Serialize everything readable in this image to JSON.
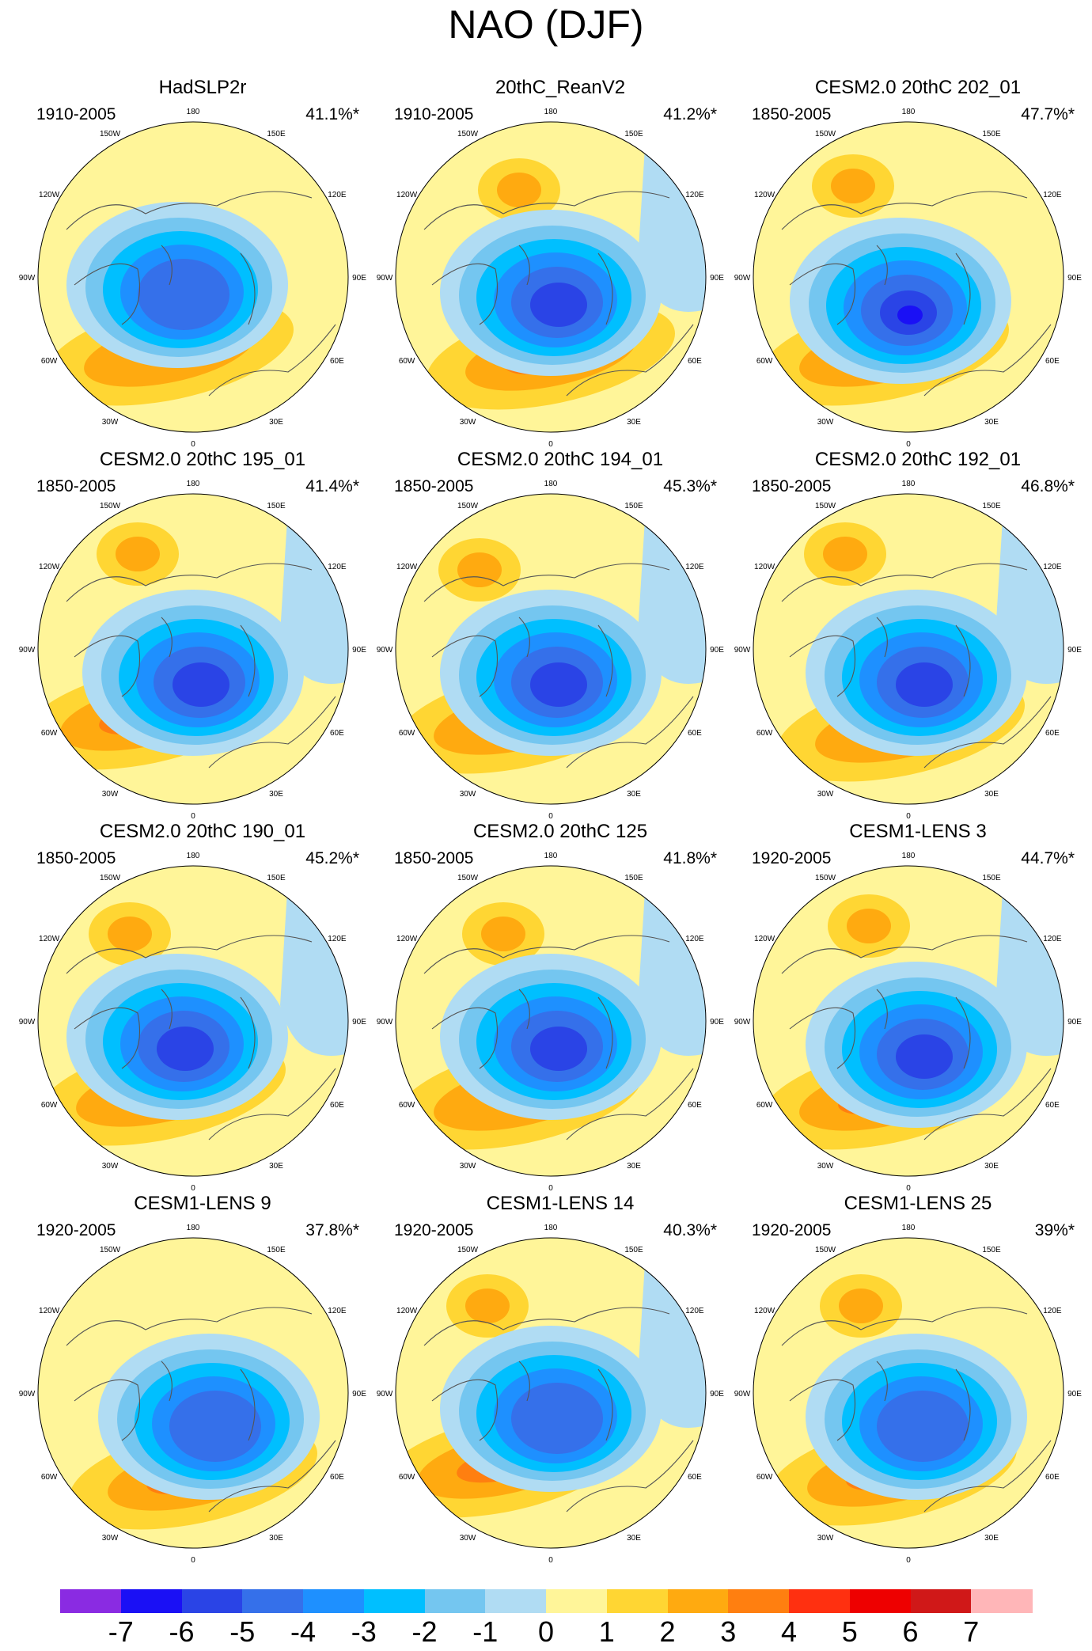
{
  "title": "NAO (DJF)",
  "lon_labels": [
    "180",
    "150E",
    "120E",
    "90E",
    "60E",
    "30E",
    "0",
    "30W",
    "60W",
    "90W",
    "120W",
    "150W"
  ],
  "panels": [
    {
      "title": "HadSLP2r",
      "years": "1910-2005",
      "pct": "41.1%*",
      "variant": 0
    },
    {
      "title": "20thC_ReanV2",
      "years": "1910-2005",
      "pct": "41.2%*",
      "variant": 1
    },
    {
      "title": "CESM2.0 20thC 202_01",
      "years": "1850-2005",
      "pct": "47.7%*",
      "variant": 2
    },
    {
      "title": "CESM2.0 20thC 195_01",
      "years": "1850-2005",
      "pct": "41.4%*",
      "variant": 3
    },
    {
      "title": "CESM2.0 20thC 194_01",
      "years": "1850-2005",
      "pct": "45.3%*",
      "variant": 4
    },
    {
      "title": "CESM2.0 20thC 192_01",
      "years": "1850-2005",
      "pct": "46.8%*",
      "variant": 5
    },
    {
      "title": "CESM2.0 20thC 190_01",
      "years": "1850-2005",
      "pct": "45.2%*",
      "variant": 6
    },
    {
      "title": "CESM2.0 20thC 125",
      "years": "1850-2005",
      "pct": "41.8%*",
      "variant": 7
    },
    {
      "title": "CESM1-LENS 3",
      "years": "1920-2005",
      "pct": "44.7%*",
      "variant": 8
    },
    {
      "title": "CESM1-LENS 9",
      "years": "1920-2005",
      "pct": "37.8%*",
      "variant": 9
    },
    {
      "title": "CESM1-LENS 14",
      "years": "1920-2005",
      "pct": "40.3%*",
      "variant": 10
    },
    {
      "title": "CESM1-LENS 25",
      "years": "1920-2005",
      "pct": "39%*",
      "variant": 11
    }
  ],
  "colorbar": {
    "colors": [
      "#8a2be2",
      "#1a10f5",
      "#2a44e6",
      "#3570ea",
      "#1e90ff",
      "#00bfff",
      "#74c6f0",
      "#b0dcf3",
      "#fff599",
      "#ffd633",
      "#ffaa10",
      "#ff7f10",
      "#ff3010",
      "#ee0000",
      "#d01818",
      "#ffb6b8"
    ],
    "labels": [
      "-7",
      "-6",
      "-5",
      "-4",
      "-3",
      "-2",
      "-1",
      "0",
      "1",
      "2",
      "3",
      "4",
      "5",
      "6",
      "7"
    ]
  }
}
